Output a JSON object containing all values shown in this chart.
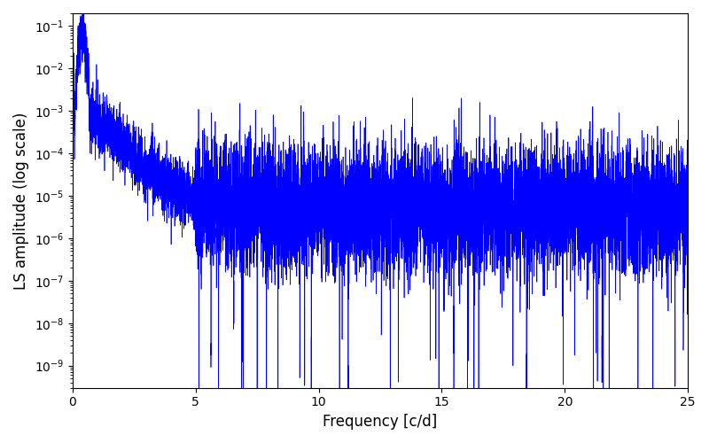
{
  "title": "",
  "xlabel": "Frequency [c/d]",
  "ylabel": "LS amplitude (log scale)",
  "line_color": "#0000ff",
  "xlim": [
    0,
    25
  ],
  "ylim": [
    3e-10,
    0.2
  ],
  "freq_max": 25.0,
  "n_points": 10000,
  "seed": 12345,
  "background_color": "#ffffff",
  "figsize": [
    8.0,
    5.0
  ],
  "dpi": 100
}
